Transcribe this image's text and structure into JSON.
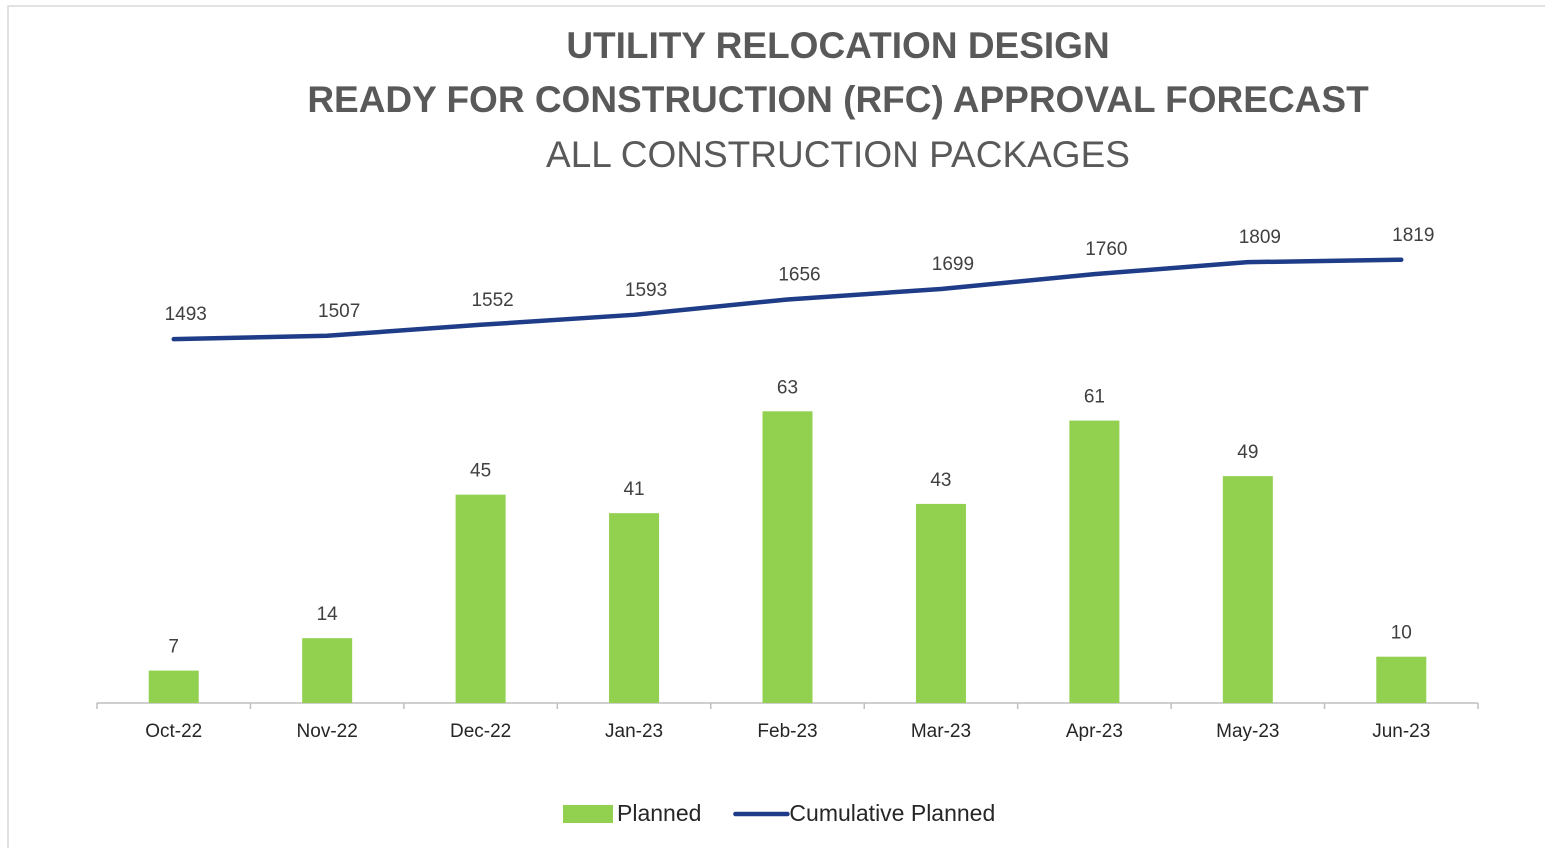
{
  "chart_data": {
    "type": "bar",
    "title": [
      "UTILITY RELOCATION DESIGN",
      "READY FOR CONSTRUCTION (RFC) APPROVAL FORECAST"
    ],
    "subtitle": "ALL CONSTRUCTION PACKAGES",
    "categories": [
      "Oct-22",
      "Nov-22",
      "Dec-22",
      "Jan-23",
      "Feb-23",
      "Mar-23",
      "Apr-23",
      "May-23",
      "Jun-23"
    ],
    "series": [
      {
        "name": "Planned",
        "type": "bar",
        "color": "#92d050",
        "values": [
          7,
          14,
          45,
          41,
          63,
          43,
          61,
          49,
          10
        ]
      },
      {
        "name": "Cumulative Planned",
        "type": "line",
        "axis": "y2",
        "color": "#1f3c88",
        "values": [
          1493,
          1507,
          1552,
          1593,
          1656,
          1699,
          1760,
          1809,
          1819
        ]
      }
    ],
    "ylim": [
      0,
      100
    ],
    "y2lim": [
      0,
      1900
    ],
    "grid": false,
    "legend": "bottom"
  }
}
